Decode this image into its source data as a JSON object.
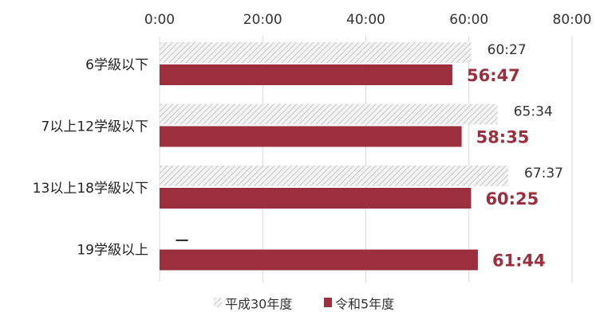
{
  "chart_data": {
    "type": "bar",
    "orientation": "horizontal",
    "categories": [
      "6学級以下",
      "7以上12学級以下",
      "13以上18学級以下",
      "19学級以上"
    ],
    "series": [
      {
        "name": "平成30年度",
        "values": [
          60.45,
          65.567,
          67.617,
          null
        ],
        "labels": [
          "60:27",
          "65:34",
          "67:37",
          "—"
        ],
        "color": "#d9d9d9",
        "pattern": "diagonal-hatch"
      },
      {
        "name": "令和5年度",
        "values": [
          56.783,
          58.583,
          60.417,
          61.733
        ],
        "labels": [
          "56:47",
          "58:35",
          "60:25",
          "61:44"
        ],
        "color": "#9c2f3d"
      }
    ],
    "x_axis": {
      "ticks": [
        0,
        20,
        40,
        60,
        80
      ],
      "tick_labels": [
        "0:00",
        "20:00",
        "40:00",
        "60:00",
        "80:00"
      ],
      "range": [
        0,
        80
      ],
      "position": "top"
    },
    "grid": true,
    "legend_position": "bottom"
  }
}
